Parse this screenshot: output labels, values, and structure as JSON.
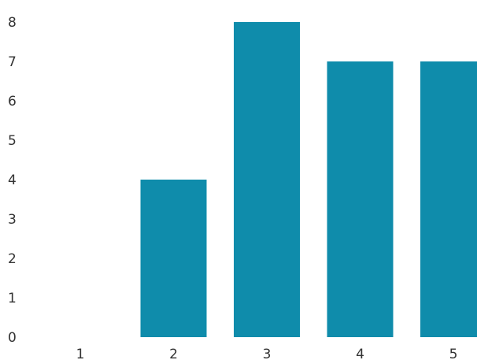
{
  "chart_data": {
    "type": "bar",
    "categories": [
      "1",
      "2",
      "3",
      "4",
      "5"
    ],
    "values": [
      0,
      4,
      8,
      7,
      7
    ],
    "ylim": [
      0,
      8
    ],
    "y_ticks": [
      "0",
      "1",
      "2",
      "3",
      "4",
      "5",
      "6",
      "7",
      "8"
    ],
    "grid": false,
    "legend": "none",
    "bar_color": "#0f8cab",
    "tick_label_color": "#333333"
  }
}
